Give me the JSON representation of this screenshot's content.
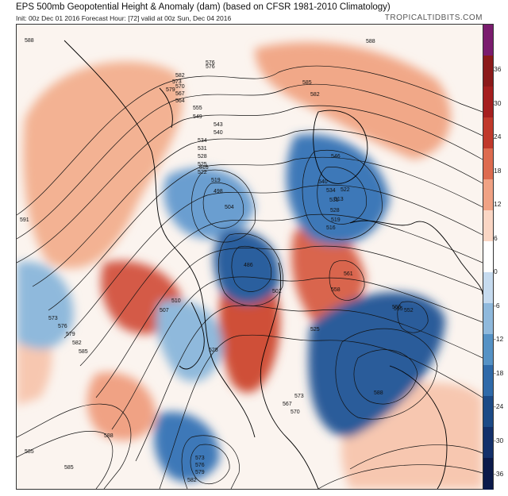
{
  "header": {
    "title": "EPS 500mb Geopotential Height & Anomaly (dam) (based on CFSR 1981-2010 Climatology)",
    "subtitle": "Init: 00z Dec 01 2016   Forecast Hour: [72]   valid at 00z Sun, Dec 04 2016",
    "brand": "TROPICALTIDBITS.COM"
  },
  "colorbar": {
    "ticks": [
      "36",
      "30",
      "24",
      "18",
      "12",
      "6",
      "0",
      "-6",
      "-12",
      "-18",
      "-24",
      "-30",
      "-36"
    ],
    "colors": [
      "#7a1c6e",
      "#8b1a1a",
      "#a51f1f",
      "#c0392b",
      "#dd6b4f",
      "#f0a284",
      "#fad6c4",
      "#ffffff",
      "#c6dbef",
      "#8fb9dc",
      "#5592c5",
      "#2f6aa9",
      "#1c4a86",
      "#13306a",
      "#0b1a4a"
    ]
  },
  "contour_labels": [
    "588",
    "591",
    "573",
    "576",
    "579",
    "582",
    "585",
    "588",
    "585",
    "582",
    "579",
    "576",
    "573",
    "570",
    "567",
    "564",
    "555",
    "549",
    "543",
    "540",
    "534",
    "531",
    "528",
    "525",
    "522",
    "519",
    "516",
    "510",
    "507",
    "504",
    "498",
    "486",
    "501",
    "525",
    "528",
    "558",
    "561",
    "555",
    "552",
    "546",
    "540",
    "534",
    "531",
    "528",
    "522",
    "519",
    "516",
    "513",
    "576",
    "582",
    "585",
    "588",
    "570",
    "573",
    "567",
    "573",
    "576",
    "579",
    "582",
    "588",
    "555",
    "585"
  ]
}
